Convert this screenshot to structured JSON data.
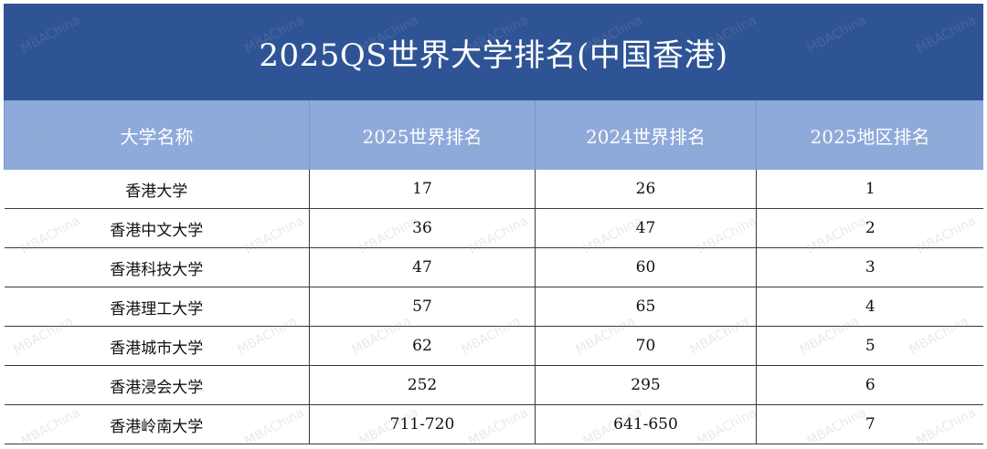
{
  "title": "2025QS世界大学排名(中国香港)",
  "columns": [
    "大学名称",
    "2025世界排名",
    "2024世界排名",
    "2025地区排名"
  ],
  "rows": [
    [
      "香港大学",
      "17",
      "26",
      "1"
    ],
    [
      "香港中文大学",
      "36",
      "47",
      "2"
    ],
    [
      "香港科技大学",
      "47",
      "60",
      "3"
    ],
    [
      "香港理工大学",
      "57",
      "65",
      "4"
    ],
    [
      "香港城市大学",
      "62",
      "70",
      "5"
    ],
    [
      "香港浸会大学",
      "252",
      "295",
      "6"
    ],
    [
      "香港岭南大学",
      "711-720",
      "641-650",
      "7"
    ]
  ],
  "watermark": "MBAChina",
  "colors": {
    "title_bg": "#2f5496",
    "header_bg": "#8eaadb",
    "text": "#111111"
  }
}
